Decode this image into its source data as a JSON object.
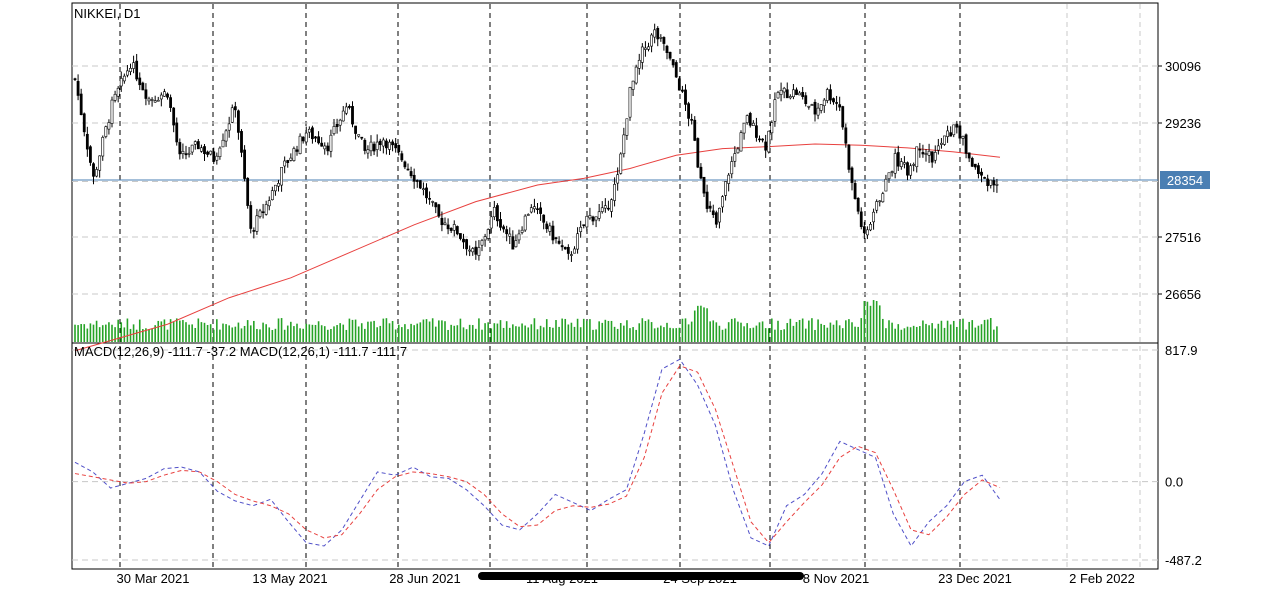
{
  "chart_data": [
    {
      "type": "candlestick",
      "title": "NIKKEI, D1",
      "colors": {
        "bull": "#ffffff",
        "bear": "#000000",
        "outline": "#000000",
        "ma": "#e8413f",
        "volume": "#26a326",
        "last_price_line": "#4a7fb3",
        "grid": "#c8c8c8"
      },
      "y_ticks": [
        30096,
        29236,
        28354,
        27516,
        26656
      ],
      "last_price": 28354,
      "x_ticks": [
        "30 Mar 2021",
        "13 May 2021",
        "28 Jun 2021",
        "11 Aug 2021",
        "24 Sep 2021",
        "8 Nov 2021",
        "23 Dec 2021",
        "2 Feb 2022"
      ],
      "ma_line": [
        {
          "x": 0,
          "y": 25800
        },
        {
          "x": 30,
          "y": 26200
        },
        {
          "x": 50,
          "y": 26600
        },
        {
          "x": 70,
          "y": 26900
        },
        {
          "x": 90,
          "y": 27300
        },
        {
          "x": 110,
          "y": 27700
        },
        {
          "x": 130,
          "y": 28050
        },
        {
          "x": 150,
          "y": 28300
        },
        {
          "x": 165,
          "y": 28400
        },
        {
          "x": 180,
          "y": 28550
        },
        {
          "x": 195,
          "y": 28750
        },
        {
          "x": 210,
          "y": 28850
        },
        {
          "x": 225,
          "y": 28880
        },
        {
          "x": 240,
          "y": 28920
        },
        {
          "x": 255,
          "y": 28900
        },
        {
          "x": 270,
          "y": 28860
        },
        {
          "x": 285,
          "y": 28800
        },
        {
          "x": 300,
          "y": 28720
        }
      ]
    },
    {
      "type": "line",
      "title": "MACD(12,26,9) -111.7 -37.2 MACD(12,26,1) -111.7 -111.7",
      "y_ticks": [
        817.9,
        0.0,
        -487.2
      ],
      "ylim": [
        -487.2,
        817.9
      ],
      "series": [
        {
          "color": "#5050c8",
          "values": [
            120,
            60,
            -40,
            -10,
            20,
            80,
            90,
            60,
            -60,
            -120,
            -150,
            -110,
            -250,
            -380,
            -400,
            -300,
            -120,
            60,
            40,
            90,
            30,
            20,
            -50,
            -150,
            -270,
            -300,
            -200,
            -80,
            -130,
            -180,
            -110,
            -50,
            300,
            700,
            760,
            600,
            350,
            -50,
            -350,
            -400,
            -150,
            -80,
            50,
            250,
            200,
            150,
            -200,
            -400,
            -250,
            -150,
            0,
            40,
            -111.7
          ]
        },
        {
          "color": "#e8413f",
          "values": [
            50,
            30,
            10,
            -10,
            0,
            40,
            70,
            60,
            0,
            -80,
            -120,
            -150,
            -200,
            -300,
            -350,
            -330,
            -200,
            -50,
            30,
            60,
            50,
            30,
            0,
            -80,
            -200,
            -280,
            -270,
            -180,
            -150,
            -160,
            -140,
            -90,
            150,
            550,
            720,
            680,
            450,
            100,
            -250,
            -380,
            -250,
            -130,
            -20,
            150,
            220,
            180,
            -50,
            -300,
            -330,
            -220,
            -80,
            10,
            -37.2
          ]
        }
      ]
    }
  ]
}
